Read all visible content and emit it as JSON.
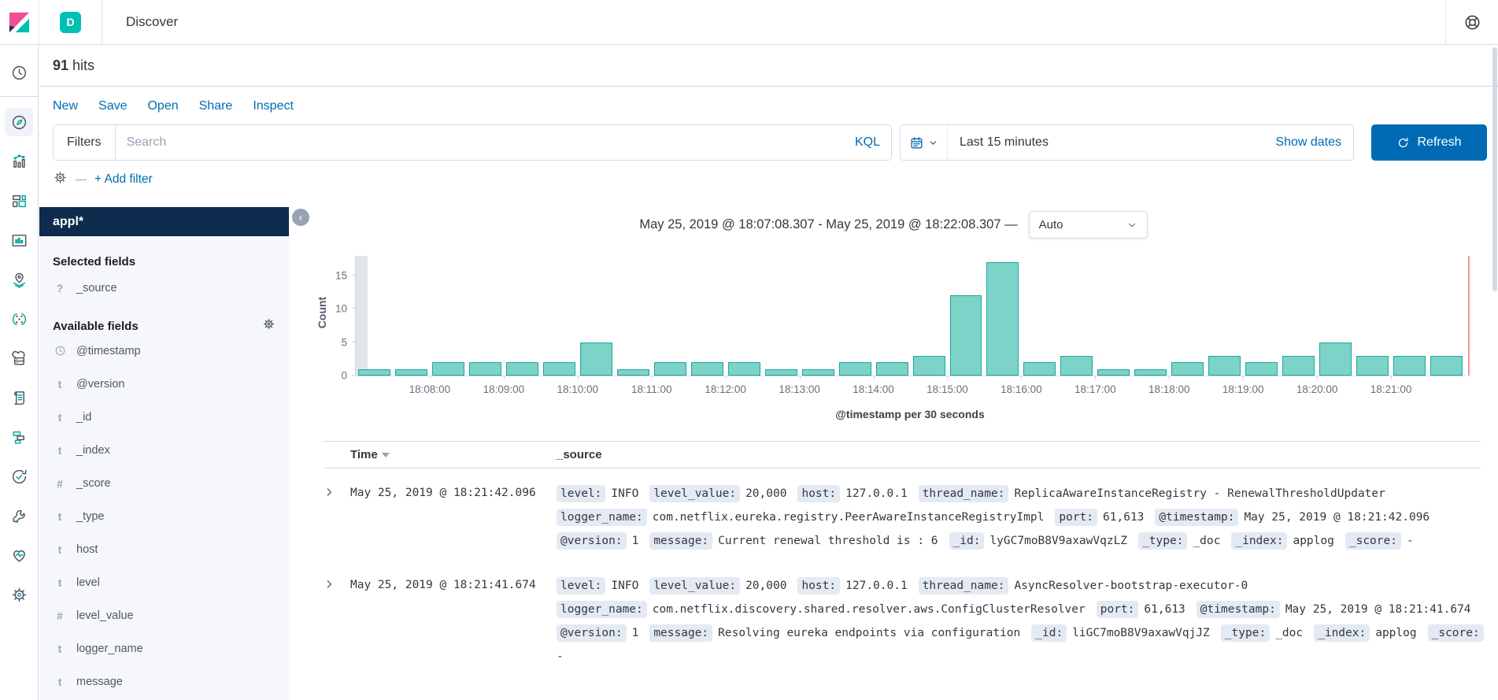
{
  "app": {
    "title": "Discover",
    "space_badge": "D"
  },
  "hits": {
    "count": "91",
    "label": "hits"
  },
  "toolbar": {
    "links": [
      "New",
      "Save",
      "Open",
      "Share",
      "Inspect"
    ]
  },
  "query_bar": {
    "filters_label": "Filters",
    "search_placeholder": "Search",
    "language": "KQL",
    "time_range": "Last 15 minutes",
    "show_dates": "Show dates",
    "refresh": "Refresh"
  },
  "filter_bar": {
    "add_filter": "+ Add filter"
  },
  "rail": {
    "active": "discover",
    "items": [
      "recently-viewed",
      "discover",
      "visualize",
      "dashboard",
      "canvas",
      "maps",
      "machine-learning",
      "infrastructure",
      "logs",
      "apm",
      "uptime",
      "dev-tools",
      "stack-monitoring",
      "management"
    ]
  },
  "sidebar": {
    "index_pattern": "appl*",
    "selected_heading": "Selected fields",
    "available_heading": "Available fields",
    "selected_fields": [
      {
        "type": "unknown",
        "name": "_source"
      }
    ],
    "available_fields": [
      {
        "type": "date",
        "name": "@timestamp"
      },
      {
        "type": "string",
        "name": "@version"
      },
      {
        "type": "string",
        "name": "_id"
      },
      {
        "type": "string",
        "name": "_index"
      },
      {
        "type": "number",
        "name": "_score"
      },
      {
        "type": "string",
        "name": "_type"
      },
      {
        "type": "string",
        "name": "host"
      },
      {
        "type": "string",
        "name": "level"
      },
      {
        "type": "number",
        "name": "level_value"
      },
      {
        "type": "string",
        "name": "logger_name"
      },
      {
        "type": "string",
        "name": "message"
      }
    ]
  },
  "chart_data": {
    "type": "bar",
    "title": "May 25, 2019 @ 18:07:08.307 - May 25, 2019 @ 18:22:08.307 —",
    "interval": "Auto",
    "ylabel": "Count",
    "xlabel": "@timestamp per 30 seconds",
    "yticks": [
      0,
      5,
      10,
      15
    ],
    "ylim": [
      0,
      18
    ],
    "total_hits": 91,
    "bucket_seconds": 30,
    "x_start": "18:07:00",
    "x_tick_labels": [
      "18:08:00",
      "18:09:00",
      "18:10:00",
      "18:11:00",
      "18:12:00",
      "18:13:00",
      "18:14:00",
      "18:15:00",
      "18:16:00",
      "18:17:00",
      "18:18:00",
      "18:19:00",
      "18:20:00",
      "18:21:00"
    ],
    "values": [
      1,
      1,
      2,
      2,
      2,
      2,
      5,
      1,
      2,
      2,
      2,
      1,
      1,
      2,
      2,
      3,
      12,
      17,
      2,
      3,
      1,
      1,
      2,
      3,
      2,
      3,
      5,
      3,
      3,
      3
    ],
    "bar_fill": "#7ED3C8",
    "bar_stroke": "#16A8A0",
    "partial_band": true,
    "now_line_color": "#F598A0"
  },
  "table": {
    "time_header": "Time",
    "source_header": "_source",
    "rows": [
      {
        "time": "May 25, 2019 @ 18:21:42.096",
        "lines": [
          [
            {
              "key": "level:",
              "value": "INFO"
            },
            {
              "key": "level_value:",
              "value": "20,000"
            },
            {
              "key": "host:",
              "value": "127.0.0.1"
            },
            {
              "key": "thread_name:",
              "value": "ReplicaAwareInstanceRegistry - RenewalThresholdUpdater"
            }
          ],
          [
            {
              "key": "logger_name:",
              "value": "com.netflix.eureka.registry.PeerAwareInstanceRegistryImpl"
            },
            {
              "key": "port:",
              "value": "61,613"
            },
            {
              "key": "@timestamp:",
              "value": "May 25, 2019 @ 18:21:42.096"
            }
          ],
          [
            {
              "key": "@version:",
              "value": "1"
            },
            {
              "key": "message:",
              "value": "Current renewal threshold is : 6"
            },
            {
              "key": "_id:",
              "value": "lyGC7moB8V9axawVqzLZ"
            },
            {
              "key": "_type:",
              "value": "_doc"
            },
            {
              "key": "_index:",
              "value": "applog"
            },
            {
              "key": "_score:",
              "value": "-"
            }
          ]
        ]
      },
      {
        "time": "May 25, 2019 @ 18:21:41.674",
        "lines": [
          [
            {
              "key": "level:",
              "value": "INFO"
            },
            {
              "key": "level_value:",
              "value": "20,000"
            },
            {
              "key": "host:",
              "value": "127.0.0.1"
            },
            {
              "key": "thread_name:",
              "value": "AsyncResolver-bootstrap-executor-0"
            }
          ],
          [
            {
              "key": "logger_name:",
              "value": "com.netflix.discovery.shared.resolver.aws.ConfigClusterResolver"
            },
            {
              "key": "port:",
              "value": "61,613"
            },
            {
              "key": "@timestamp:",
              "value": "May 25, 2019 @ 18:21:41.674"
            }
          ],
          [
            {
              "key": "@version:",
              "value": "1"
            },
            {
              "key": "message:",
              "value": "Resolving eureka endpoints via configuration"
            },
            {
              "key": "_id:",
              "value": "liGC7moB8V9axawVqjJZ"
            },
            {
              "key": "_type:",
              "value": "_doc"
            },
            {
              "key": "_index:",
              "value": "applog"
            },
            {
              "key": "_score:",
              "value": ""
            }
          ],
          [
            {
              "value": "-"
            }
          ]
        ]
      }
    ]
  },
  "colors": {
    "primary_blue": "#006BB4",
    "teal_badge": "#00BFB3",
    "navy_header": "#0D2B4C",
    "border": "#D3DAE6",
    "pill_bg": "#E3EAF3",
    "bar_fill": "#7ED3C8",
    "bar_stroke": "#16A8A0",
    "now_line": "#F598A0"
  }
}
